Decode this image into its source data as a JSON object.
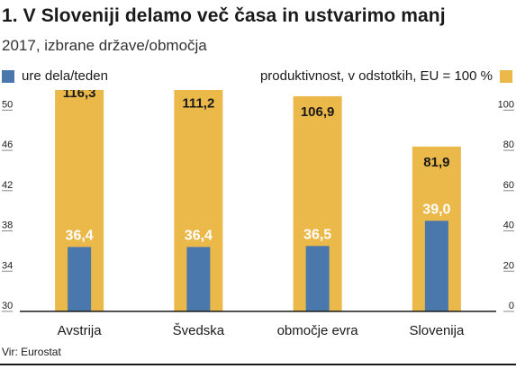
{
  "title": "1. V Sloveniji delamo več časa in ustvarimo manj",
  "subtitle": "2017, izbrane države/območja",
  "source": "Vir: Eurostat",
  "colors": {
    "hours": "#4a78ad",
    "productivity": "#ebb84a",
    "hours_label": "#ffffff",
    "productivity_label": "#1a1a1a"
  },
  "chart_data": {
    "type": "bar",
    "categories": [
      "Avstrija",
      "Švedska",
      "območje evra",
      "Slovenija"
    ],
    "series": [
      {
        "name": "ure dela/teden",
        "axis": "left",
        "values": [
          36.4,
          36.4,
          36.5,
          39.0
        ],
        "labels": [
          "36,4",
          "36,4",
          "36,5",
          "39,0"
        ]
      },
      {
        "name": "produktivnost, v odstotkih, EU = 100 %",
        "axis": "right",
        "values": [
          116.3,
          111.2,
          106.9,
          81.9
        ],
        "labels": [
          "116,3",
          "111,2",
          "106,9",
          "81,9"
        ]
      }
    ],
    "left_axis": {
      "ylim": [
        30,
        52
      ],
      "ticks": [
        30,
        34,
        38,
        42,
        46,
        50
      ]
    },
    "right_axis": {
      "ylim": [
        0,
        110
      ],
      "ticks": [
        0,
        20,
        40,
        60,
        80,
        100
      ]
    },
    "legend": "top",
    "grid": false
  }
}
